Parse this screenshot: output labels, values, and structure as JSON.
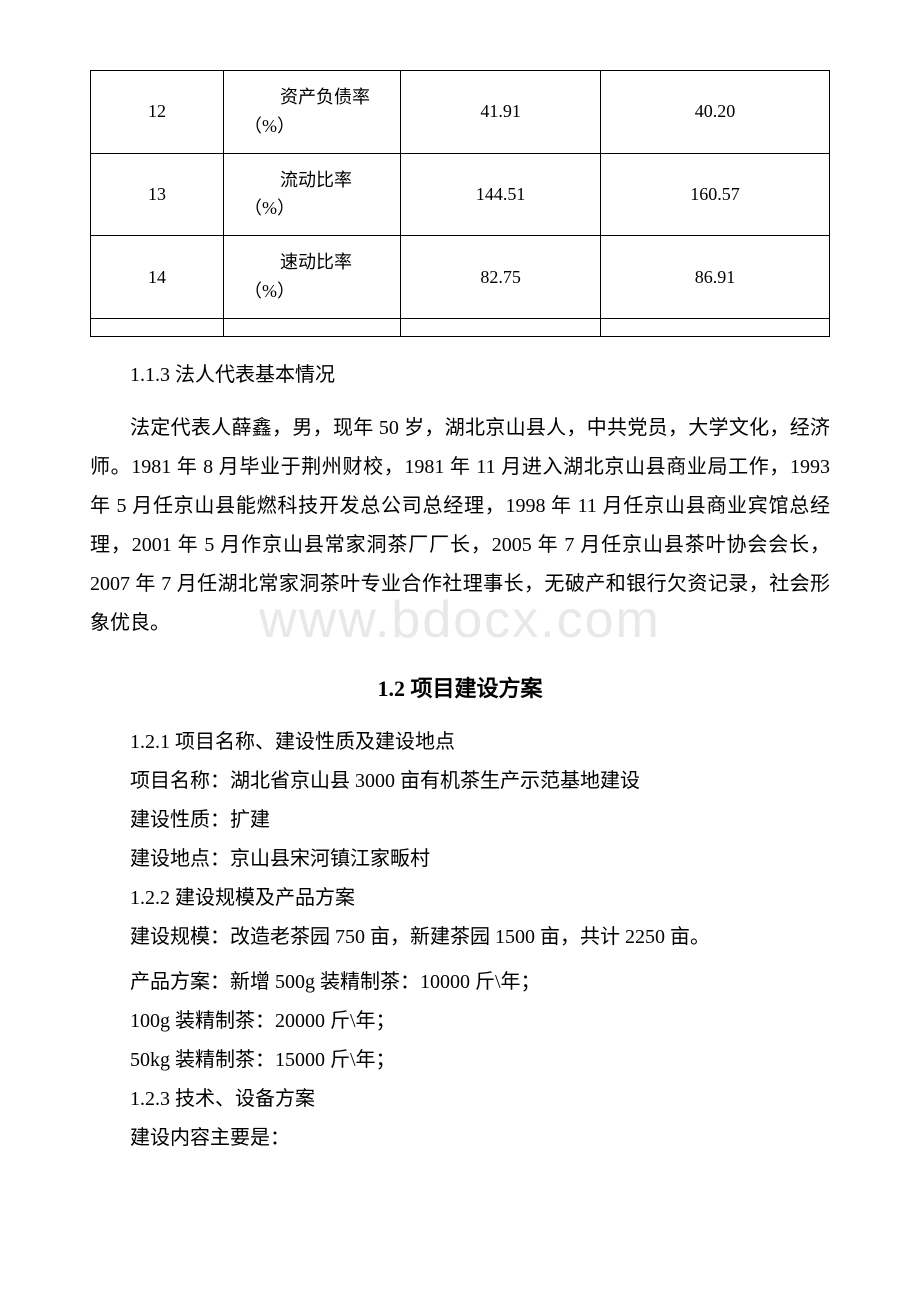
{
  "table": {
    "columns_count": 4,
    "column_widths_pct": [
      18,
      24,
      27,
      31
    ],
    "border_color": "#000000",
    "font_size": 18,
    "rows": [
      {
        "num": "12",
        "label": "　　资产负债率（%）",
        "v1": "41.91",
        "v2": "40.20"
      },
      {
        "num": "13",
        "label": "　　流动比率（%）",
        "v1": "144.51",
        "v2": "160.57"
      },
      {
        "num": "14",
        "label": "　　速动比率（%）",
        "v1": "82.75",
        "v2": "86.91"
      }
    ],
    "has_empty_trailing_row": true
  },
  "section_1_1_3": {
    "heading": "1.1.3 法人代表基本情况",
    "body": "法定代表人薛鑫，男，现年 50 岁，湖北京山县人，中共党员，大学文化，经济师。1981 年 8 月毕业于荆州财校，1981 年 11 月进入湖北京山县商业局工作，1993 年 5 月任京山县能燃科技开发总公司总经理，1998 年 11 月任京山县商业宾馆总经理，2001 年 5 月作京山县常家洞茶厂厂长，2005 年 7 月任京山县茶叶协会会长，2007 年 7 月任湖北常家洞茶叶专业合作社理事长，无破产和银行欠资记录，社会形象优良。"
  },
  "section_1_2": {
    "title": "1.2 项目建设方案",
    "items": [
      "1.2.1 项目名称、建设性质及建设地点",
      "项目名称：湖北省京山县 3000 亩有机茶生产示范基地建设",
      "建设性质：扩建",
      "建设地点：京山县宋河镇江家畈村",
      "1.2.2 建设规模及产品方案",
      "建设规模：改造老茶园 750 亩，新建茶园 1500 亩，共计 2250 亩。",
      "产品方案：新增 500g 装精制茶：10000 斤\\年；",
      "100g 装精制茶：20000 斤\\年；",
      "50kg 装精制茶：15000 斤\\年；",
      "1.2.3 技术、设备方案",
      "建设内容主要是："
    ]
  },
  "watermark": "www.bdocx.com",
  "typography": {
    "body_font_size": 20,
    "body_line_height": 1.95,
    "title_font_size": 22,
    "text_indent_em": 2,
    "text_color": "#000000",
    "background_color": "#ffffff",
    "watermark_color": "#e8e8e8",
    "watermark_font_size": 52
  }
}
